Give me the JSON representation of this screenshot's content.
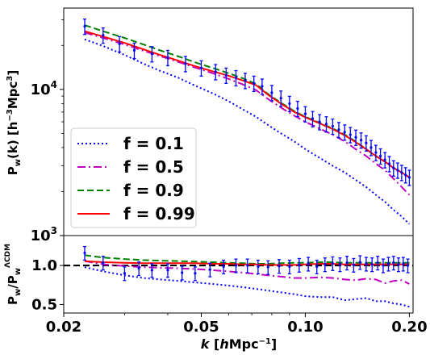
{
  "chart_data": [
    {
      "type": "line",
      "panel": "main",
      "ylabel": "P_w(k) [h^-3 Mpc^3]",
      "yscale": "log",
      "xscale": "log",
      "xlim": [
        0.02,
        0.205
      ],
      "ylim": [
        1000,
        36000
      ],
      "yticks": [
        {
          "value": 1000,
          "label": "10^3"
        },
        {
          "value": 10000,
          "label": "10^4"
        }
      ],
      "legend": {
        "position": "lower-left",
        "entries": [
          "f = 0.1",
          "f = 0.5",
          "f = 0.9",
          "f = 0.99"
        ]
      },
      "x": [
        0.023,
        0.026,
        0.03,
        0.034,
        0.038,
        0.043,
        0.048,
        0.054,
        0.06,
        0.066,
        0.072,
        0.078,
        0.085,
        0.093,
        0.1,
        0.11,
        0.12,
        0.13,
        0.14,
        0.15,
        0.16,
        0.17,
        0.18,
        0.19,
        0.2
      ],
      "series": [
        {
          "name": "f = 0.1",
          "color": "#0000ff",
          "dash": "dotted",
          "values": [
            22000,
            19800,
            17200,
            15000,
            13400,
            12000,
            10600,
            9400,
            8300,
            7300,
            6500,
            5700,
            5000,
            4400,
            3900,
            3400,
            3000,
            2700,
            2400,
            2150,
            1900,
            1700,
            1500,
            1350,
            1200
          ]
        },
        {
          "name": "f = 0.5",
          "color": "#c000c0",
          "dash": "dashdot",
          "values": [
            24500,
            22500,
            20300,
            18400,
            16900,
            15400,
            14100,
            12900,
            11800,
            10800,
            9900,
            8600,
            7500,
            6600,
            6000,
            5400,
            4900,
            4400,
            3900,
            3500,
            3100,
            2800,
            2450,
            2150,
            1900
          ]
        },
        {
          "name": "f = 0.9",
          "color": "#008000",
          "dash": "dashed",
          "values": [
            27500,
            25000,
            22500,
            20300,
            18500,
            16800,
            15300,
            14000,
            12900,
            11900,
            10900,
            9300,
            8100,
            7100,
            6500,
            5900,
            5400,
            4900,
            4400,
            3900,
            3500,
            3200,
            2900,
            2700,
            2500
          ]
        },
        {
          "name": "f = 0.99",
          "color": "#ff0000",
          "dash": "solid",
          "values": [
            25000,
            23000,
            20800,
            18800,
            17200,
            15700,
            14400,
            13300,
            12400,
            11500,
            10700,
            9200,
            8000,
            7000,
            6450,
            5850,
            5350,
            4850,
            4350,
            3900,
            3500,
            3200,
            2900,
            2700,
            2500
          ]
        }
      ],
      "data_points": {
        "name": "measured",
        "color": "#0000ff",
        "x": [
          0.023,
          0.026,
          0.029,
          0.032,
          0.036,
          0.04,
          0.045,
          0.05,
          0.055,
          0.059,
          0.063,
          0.067,
          0.071,
          0.075,
          0.08,
          0.085,
          0.09,
          0.095,
          0.1,
          0.105,
          0.11,
          0.115,
          0.12,
          0.125,
          0.13,
          0.135,
          0.14,
          0.145,
          0.15,
          0.155,
          0.16,
          0.165,
          0.17,
          0.175,
          0.18,
          0.185,
          0.19,
          0.195,
          0.2
        ],
        "y": [
          27000,
          23500,
          20500,
          18500,
          17500,
          16500,
          15000,
          14000,
          13200,
          12500,
          12000,
          11500,
          11000,
          10500,
          9500,
          8700,
          8000,
          7400,
          6800,
          6300,
          6000,
          5800,
          5600,
          5300,
          5100,
          4900,
          4700,
          4500,
          4300,
          4000,
          3700,
          3500,
          3300,
          3100,
          2900,
          2800,
          2700,
          2600,
          2500
        ],
        "err_frac": 0.12
      }
    },
    {
      "type": "line",
      "panel": "ratio",
      "xlabel": "k [hMpc^-1]",
      "ylabel": "P_w / P_w^ΛCDM",
      "xscale": "log",
      "yscale": "log",
      "xlim": [
        0.02,
        0.205
      ],
      "ylim": [
        0.43,
        1.7
      ],
      "xticks": [
        {
          "value": 0.02,
          "label": "0.02"
        },
        {
          "value": 0.05,
          "label": "0.05"
        },
        {
          "value": 0.1,
          "label": "0.10"
        },
        {
          "value": 0.2,
          "label": "0.20"
        }
      ],
      "yticks": [
        {
          "value": 0.5,
          "label": "0.5"
        },
        {
          "value": 1.0,
          "label": "1.0"
        }
      ],
      "reference_line": {
        "value": 1.0,
        "color": "#000000",
        "dash": "dashed"
      },
      "x": [
        0.023,
        0.026,
        0.03,
        0.034,
        0.038,
        0.043,
        0.048,
        0.054,
        0.06,
        0.066,
        0.072,
        0.078,
        0.085,
        0.093,
        0.1,
        0.11,
        0.12,
        0.13,
        0.14,
        0.15,
        0.16,
        0.17,
        0.18,
        0.19,
        0.2
      ],
      "series": [
        {
          "name": "f = 0.1",
          "color": "#0000ff",
          "dash": "dotted",
          "values": [
            0.97,
            0.9,
            0.84,
            0.8,
            0.78,
            0.76,
            0.74,
            0.72,
            0.7,
            0.68,
            0.66,
            0.64,
            0.62,
            0.6,
            0.58,
            0.57,
            0.57,
            0.54,
            0.55,
            0.56,
            0.53,
            0.53,
            0.51,
            0.5,
            0.48
          ]
        },
        {
          "name": "f = 0.5",
          "color": "#c000c0",
          "dash": "dashdot",
          "values": [
            1.08,
            1.02,
            0.99,
            0.97,
            0.96,
            0.95,
            0.94,
            0.92,
            0.9,
            0.88,
            0.86,
            0.84,
            0.82,
            0.8,
            0.8,
            0.81,
            0.8,
            0.78,
            0.77,
            0.79,
            0.78,
            0.73,
            0.76,
            0.77,
            0.72
          ]
        },
        {
          "name": "f = 0.9",
          "color": "#008000",
          "dash": "dashed",
          "values": [
            1.2,
            1.15,
            1.12,
            1.1,
            1.09,
            1.08,
            1.07,
            1.06,
            1.05,
            1.04,
            1.03,
            1.03,
            1.04,
            1.05,
            1.05,
            1.06,
            1.06,
            1.05,
            1.05,
            1.05,
            1.05,
            1.05,
            1.05,
            1.05,
            1.05
          ]
        },
        {
          "name": "f = 0.99",
          "color": "#ff0000",
          "dash": "solid",
          "values": [
            1.08,
            1.06,
            1.05,
            1.04,
            1.04,
            1.04,
            1.04,
            1.03,
            1.03,
            1.02,
            1.02,
            1.01,
            1.01,
            1.01,
            1.02,
            1.03,
            1.03,
            1.02,
            1.02,
            1.02,
            1.02,
            1.02,
            1.02,
            1.02,
            1.02
          ]
        }
      ],
      "data_points": {
        "name": "measured",
        "color": "#0000ff",
        "x": [
          0.023,
          0.026,
          0.03,
          0.033,
          0.036,
          0.04,
          0.044,
          0.048,
          0.053,
          0.058,
          0.063,
          0.068,
          0.073,
          0.078,
          0.084,
          0.09,
          0.096,
          0.102,
          0.108,
          0.114,
          0.12,
          0.126,
          0.132,
          0.138,
          0.144,
          0.15,
          0.156,
          0.162,
          0.168,
          0.174,
          0.18,
          0.186,
          0.192,
          0.198
        ],
        "y": [
          1.25,
          1.05,
          0.87,
          0.95,
          0.92,
          0.92,
          0.88,
          0.87,
          0.93,
          0.98,
          1.0,
          1.0,
          0.98,
          0.97,
          0.99,
          0.98,
          1.01,
          1.03,
          0.98,
          1.02,
          1.04,
          1.02,
          1.05,
          1.01,
          1.06,
          1.03,
          1.02,
          1.05,
          1.0,
          1.03,
          1.05,
          1.02,
          1.03,
          1.0
        ],
        "err_frac": 0.12
      }
    }
  ]
}
